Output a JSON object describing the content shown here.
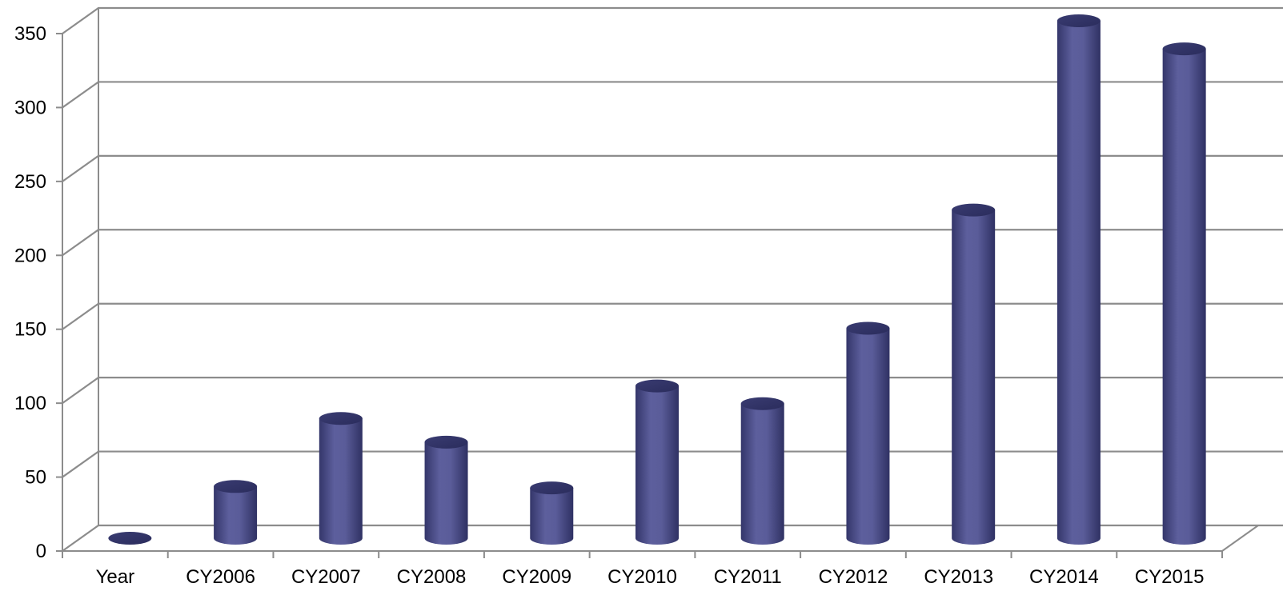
{
  "chart_data": {
    "type": "bar",
    "style": "3d-cylinder",
    "title": "",
    "xlabel": "",
    "ylabel": "",
    "categories": [
      "Year",
      "CY2006",
      "CY2007",
      "CY2008",
      "CY2009",
      "CY2010",
      "CY2011",
      "CY2012",
      "CY2013",
      "CY2014",
      "CY2015"
    ],
    "values": [
      0,
      35,
      81,
      65,
      34,
      103,
      91,
      142,
      222,
      350,
      331
    ],
    "ylim": [
      0,
      350
    ],
    "yticks": [
      0,
      50,
      100,
      150,
      200,
      250,
      300,
      350
    ],
    "grid": true,
    "legend": "none",
    "bar_color": "#4b4d8a"
  }
}
